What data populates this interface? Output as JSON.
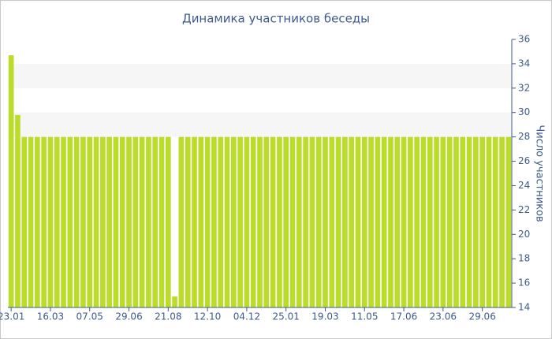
{
  "chart_data": {
    "type": "bar",
    "title": "Динамика участников беседы",
    "y_axis_label": "Число участников",
    "categories": [
      "23.01",
      null,
      null,
      null,
      null,
      null,
      "16.03",
      null,
      null,
      null,
      null,
      null,
      "07.05",
      null,
      null,
      null,
      null,
      null,
      "29.06",
      null,
      null,
      null,
      null,
      null,
      "21.08",
      null,
      null,
      null,
      null,
      null,
      "12.10",
      null,
      null,
      null,
      null,
      null,
      "04.12",
      null,
      null,
      null,
      null,
      null,
      "25.01",
      null,
      null,
      null,
      null,
      null,
      "19.03",
      null,
      null,
      null,
      null,
      null,
      "11.05",
      null,
      null,
      null,
      null,
      null,
      "17.06",
      null,
      null,
      null,
      null,
      null,
      "23.06",
      null,
      null,
      null,
      null,
      null,
      "29.06",
      null,
      null,
      null,
      null
    ],
    "values": [
      34.7,
      29.8,
      28,
      28,
      28,
      28,
      28,
      28,
      28,
      28,
      28,
      28,
      28,
      28,
      28,
      28,
      28,
      28,
      28,
      28,
      28,
      28,
      28,
      28,
      28,
      14.9,
      28,
      28,
      28,
      28,
      28,
      28,
      28,
      28,
      28,
      28,
      28,
      28,
      28,
      28,
      28,
      28,
      28,
      28,
      28,
      28,
      28,
      28,
      28,
      28,
      28,
      28,
      28,
      28,
      28,
      28,
      28,
      28,
      28,
      28,
      28,
      28,
      28,
      28,
      28,
      28,
      28,
      28,
      28,
      28,
      28,
      28,
      28,
      28,
      28,
      28,
      28
    ],
    "color": "#bcdc2b",
    "ylim": [
      14,
      36
    ],
    "yticks": [
      14,
      16,
      18,
      20,
      22,
      24,
      26,
      28,
      30,
      32,
      34,
      36
    ],
    "plot_bands": [
      [
        28,
        30
      ],
      [
        32,
        34
      ]
    ],
    "band_color": "#f6f6f6",
    "y_axis_side": "right"
  }
}
